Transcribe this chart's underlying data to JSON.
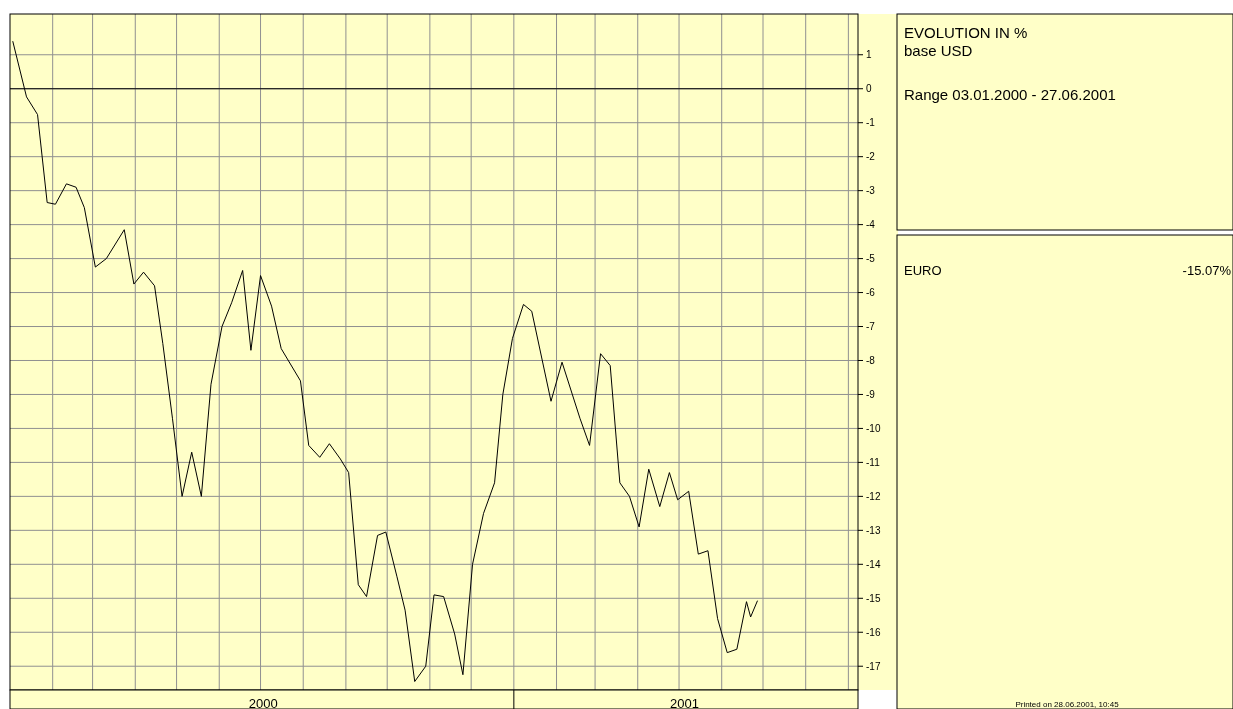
{
  "chart_data": {
    "type": "line",
    "title": "EVOLUTION IN %",
    "subtitle": "base USD",
    "annotations": [
      "Range 03.01.2000 - 27.06.2001",
      "-15.07%",
      "Printed on 28.06.2001, 10:45"
    ],
    "x": [
      "2000-01-03",
      "2000-01-13",
      "2000-01-21",
      "2000-01-28",
      "2000-02-03",
      "2000-02-11",
      "2000-02-18",
      "2000-02-24",
      "2000-03-03",
      "2000-03-11",
      "2000-03-24",
      "2000-03-31",
      "2000-04-07",
      "2000-04-15",
      "2000-04-21",
      "2000-04-28",
      "2000-05-05",
      "2000-05-12",
      "2000-05-19",
      "2000-05-26",
      "2000-06-03",
      "2000-06-10",
      "2000-06-18",
      "2000-06-24",
      "2000-07-01",
      "2000-07-09",
      "2000-07-16",
      "2000-07-30",
      "2000-08-05",
      "2000-08-13",
      "2000-08-20",
      "2000-08-28",
      "2000-09-03",
      "2000-09-10",
      "2000-09-16",
      "2000-09-24",
      "2000-09-30",
      "2000-10-08",
      "2000-10-14",
      "2000-10-21",
      "2000-10-29",
      "2000-11-04",
      "2000-11-11",
      "2000-11-19",
      "2000-11-25",
      "2000-12-02",
      "2000-12-10",
      "2000-12-18",
      "2000-12-24",
      "2000-12-31",
      "2001-01-08",
      "2001-01-14",
      "2001-01-28",
      "2001-02-05",
      "2001-02-18",
      "2001-02-25",
      "2001-03-05",
      "2001-03-12",
      "2001-03-19",
      "2001-03-26",
      "2001-04-02",
      "2001-04-09",
      "2001-04-17",
      "2001-04-24",
      "2001-04-30",
      "2001-05-08",
      "2001-05-15",
      "2001-05-22",
      "2001-05-29",
      "2001-06-05",
      "2001-06-12",
      "2001-06-19",
      "2001-06-22",
      "2001-06-27"
    ],
    "series": [
      {
        "name": "EURO",
        "color": "#000000",
        "values": [
          1.4,
          -0.24,
          -0.76,
          -3.35,
          -3.4,
          -2.8,
          -2.9,
          -3.5,
          -5.25,
          -5.0,
          -4.15,
          -5.75,
          -5.4,
          -5.8,
          -7.5,
          -9.7,
          -12.0,
          -10.7,
          -12.0,
          -8.7,
          -7.0,
          -6.3,
          -5.35,
          -7.7,
          -5.5,
          -6.4,
          -7.65,
          -8.6,
          -10.5,
          -10.85,
          -10.45,
          -10.9,
          -11.3,
          -14.6,
          -14.95,
          -13.15,
          -13.05,
          -14.35,
          -15.35,
          -17.45,
          -17.0,
          -14.9,
          -14.95,
          -16.05,
          -17.25,
          -14.0,
          -12.5,
          -11.6,
          -9.0,
          -7.35,
          -6.35,
          -6.55,
          -9.2,
          -8.05,
          -9.7,
          -10.5,
          -7.8,
          -8.15,
          -11.6,
          -12.0,
          -12.9,
          -11.2,
          -12.3,
          -11.3,
          -12.1,
          -11.85,
          -13.7,
          -13.6,
          -15.6,
          -16.6,
          -16.5,
          -15.1,
          -15.55,
          -15.07
        ]
      }
    ],
    "xlim": [
      "2000-01-01",
      "2001-09-08"
    ],
    "xticks": [
      {
        "value": "2000-02-01",
        "label": null
      },
      {
        "value": "2000-03-01",
        "label": null
      },
      {
        "value": "2000-04-01",
        "label": null
      },
      {
        "value": "2000-05-01",
        "label": null
      },
      {
        "value": "2000-06-01",
        "label": null
      },
      {
        "value": "2000-07-01",
        "label": null
      },
      {
        "value": "2000-07-03",
        "label": "2000"
      },
      {
        "value": "2000-08-01",
        "label": null
      },
      {
        "value": "2000-09-01",
        "label": null
      },
      {
        "value": "2000-10-01",
        "label": null
      },
      {
        "value": "2000-11-01",
        "label": null
      },
      {
        "value": "2000-12-01",
        "label": null
      },
      {
        "value": "2001-01-01",
        "label": null
      },
      {
        "value": "2001-02-01",
        "label": null
      },
      {
        "value": "2001-03-01",
        "label": null
      },
      {
        "value": "2001-04-01",
        "label": null
      },
      {
        "value": "2001-05-01",
        "label": null
      },
      {
        "value": "2001-05-05",
        "label": "2001"
      },
      {
        "value": "2001-06-01",
        "label": null
      },
      {
        "value": "2001-07-01",
        "label": null
      },
      {
        "value": "2001-08-01",
        "label": null
      },
      {
        "value": "2001-09-01",
        "label": null
      }
    ],
    "ylim": [
      -17.7,
      2.2
    ],
    "yticks": [
      1,
      0,
      -1,
      -2,
      -3,
      -4,
      -5,
      -6,
      -7,
      -8,
      -9,
      -10,
      -11,
      -12,
      -13,
      -14,
      -15,
      -16,
      -17
    ],
    "ref_lines": [
      {
        "axis": "y",
        "value": 0,
        "color": "#000000"
      }
    ],
    "grid": true,
    "legend": "right",
    "line_style": "solid"
  }
}
